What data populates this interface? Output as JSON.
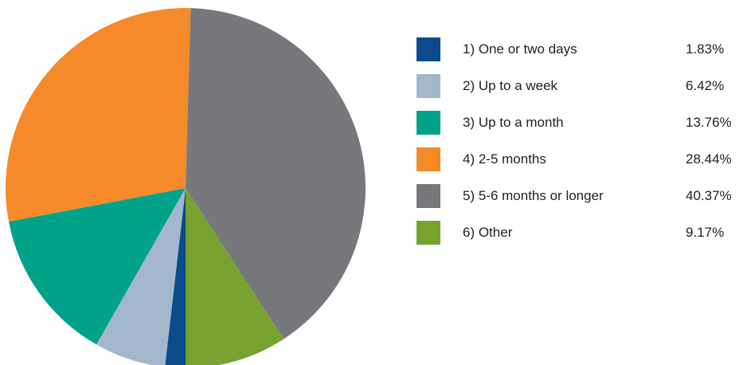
{
  "chart_data": {
    "type": "pie",
    "start_angle_deg": 0,
    "direction": "counterclockwise",
    "slices": [
      {
        "label": "1) One or two days",
        "value": 1.83,
        "value_label": "1.83%",
        "color": "#0b4a8b"
      },
      {
        "label": "2) Up to a week",
        "value": 6.42,
        "value_label": "6.42%",
        "color": "#a3b7cc"
      },
      {
        "label": "3) Up to a month",
        "value": 13.76,
        "value_label": "13.76%",
        "color": "#00a28a"
      },
      {
        "label": "4) 2-5 months",
        "value": 28.44,
        "value_label": "28.44%",
        "color": "#f58a2a"
      },
      {
        "label": "5) 5-6 months or longer",
        "value": 40.37,
        "value_label": "40.37%",
        "color": "#77787b"
      },
      {
        "label": "6) Other",
        "value": 9.17,
        "value_label": "9.17%",
        "color": "#78a22f"
      }
    ],
    "legend_position": "right"
  }
}
